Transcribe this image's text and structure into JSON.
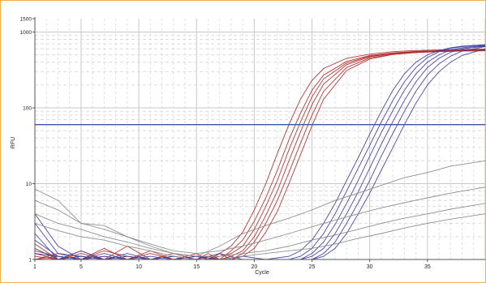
{
  "chart_data": {
    "type": "line",
    "title": "",
    "xlabel": "Cycle",
    "ylabel": "RFU",
    "y_scale": "log",
    "xlim": [
      1,
      40
    ],
    "ylim": [
      1,
      1500
    ],
    "x_ticks": [
      1,
      5,
      10,
      15,
      20,
      25,
      30,
      35
    ],
    "y_ticks": [
      {
        "value": 1,
        "label": "1"
      },
      {
        "value": 10,
        "label": "10"
      },
      {
        "value": 100,
        "label": "100"
      },
      {
        "value": 1000,
        "label": "1000"
      },
      {
        "value": 1500,
        "label": "1500"
      }
    ],
    "grid": true,
    "legend": "none",
    "threshold": {
      "value": 60,
      "color": "#3a55a5"
    },
    "colors": {
      "red": "#b22d2d",
      "blue": "#3b3fa3",
      "gray": "#8a8a8a",
      "frame": "#f0b050"
    },
    "series": [
      {
        "group": "red",
        "x": [
          1,
          3,
          5,
          7,
          9,
          11,
          13,
          15,
          16,
          17,
          18,
          19,
          20,
          21,
          22,
          23,
          24,
          25,
          26,
          28,
          30,
          32,
          34,
          36,
          38,
          40
        ],
        "y": [
          1.1,
          1.0,
          1.2,
          1.0,
          1.1,
          1.0,
          1.0,
          1.1,
          1.0,
          1.2,
          1.5,
          2.3,
          4.5,
          10,
          25,
          60,
          130,
          230,
          330,
          450,
          510,
          550,
          570,
          580,
          590,
          595
        ]
      },
      {
        "group": "red",
        "x": [
          1,
          3,
          5,
          7,
          9,
          11,
          13,
          15,
          16,
          17,
          18,
          19,
          20,
          21,
          22,
          23,
          24,
          25,
          26,
          28,
          30,
          32,
          34,
          36,
          38,
          40
        ],
        "y": [
          1.3,
          1.1,
          1.0,
          1.4,
          1.0,
          1.2,
          1.0,
          1.0,
          1.2,
          1.0,
          1.3,
          1.8,
          3.2,
          6.5,
          15,
          38,
          85,
          170,
          270,
          410,
          490,
          530,
          555,
          570,
          580,
          585
        ]
      },
      {
        "group": "red",
        "x": [
          1,
          3,
          5,
          7,
          9,
          11,
          13,
          15,
          16,
          17,
          18,
          19,
          20,
          21,
          22,
          23,
          24,
          25,
          26,
          28,
          30,
          32,
          34,
          36,
          38,
          40
        ],
        "y": [
          1.6,
          1.0,
          1.3,
          1.0,
          1.5,
          1.0,
          1.1,
          1.0,
          1.0,
          1.1,
          1.2,
          1.5,
          2.5,
          5,
          11,
          28,
          65,
          140,
          240,
          390,
          480,
          525,
          550,
          565,
          575,
          580
        ]
      },
      {
        "group": "red",
        "x": [
          1,
          3,
          5,
          7,
          9,
          11,
          13,
          15,
          16,
          17,
          18,
          19,
          20,
          21,
          22,
          23,
          24,
          25,
          26,
          28,
          30,
          32,
          34,
          36,
          38,
          40
        ],
        "y": [
          1.0,
          1.2,
          1.0,
          1.1,
          1.0,
          1.3,
          1.0,
          1.2,
          1.0,
          1.0,
          1.1,
          1.3,
          2.0,
          3.8,
          8,
          20,
          48,
          110,
          205,
          370,
          470,
          520,
          545,
          560,
          570,
          575
        ]
      },
      {
        "group": "red",
        "x": [
          1,
          3,
          5,
          7,
          9,
          11,
          13,
          15,
          16,
          17,
          18,
          19,
          20,
          21,
          22,
          23,
          24,
          25,
          26,
          28,
          30,
          32,
          34,
          36,
          38,
          40
        ],
        "y": [
          1.2,
          1.0,
          1.1,
          1.0,
          1.0,
          1.0,
          1.2,
          1.0,
          1.1,
          1.0,
          1.0,
          1.2,
          1.7,
          3.0,
          6,
          14,
          34,
          80,
          165,
          340,
          455,
          510,
          540,
          555,
          565,
          570
        ]
      },
      {
        "group": "red",
        "x": [
          1,
          3,
          5,
          7,
          9,
          11,
          13,
          15,
          16,
          17,
          18,
          19,
          20,
          21,
          22,
          23,
          24,
          25,
          26,
          28,
          30,
          32,
          34,
          36,
          38,
          40
        ],
        "y": [
          1.0,
          1.1,
          1.0,
          1.3,
          1.1,
          1.0,
          1.0,
          1.1,
          1.0,
          1.2,
          1.0,
          1.1,
          1.4,
          2.3,
          4.3,
          10,
          24,
          58,
          130,
          310,
          440,
          505,
          535,
          550,
          560,
          565
        ]
      },
      {
        "group": "blue",
        "x": [
          1,
          3,
          5,
          7,
          9,
          11,
          13,
          15,
          17,
          19,
          21,
          23,
          24,
          25,
          26,
          27,
          28,
          29,
          30,
          31,
          32,
          33,
          34,
          35,
          36,
          37,
          38,
          40
        ],
        "y": [
          4.0,
          1.5,
          1.0,
          1.2,
          1.0,
          1.0,
          1.1,
          1.0,
          1.0,
          1.0,
          1.0,
          1.1,
          1.3,
          1.8,
          3,
          5.5,
          11,
          22,
          45,
          90,
          170,
          280,
          400,
          500,
          570,
          620,
          650,
          680
        ]
      },
      {
        "group": "blue",
        "x": [
          1,
          3,
          5,
          7,
          9,
          11,
          13,
          15,
          17,
          19,
          21,
          23,
          24,
          25,
          26,
          27,
          28,
          29,
          30,
          31,
          32,
          33,
          34,
          35,
          36,
          37,
          38,
          40
        ],
        "y": [
          3.0,
          1.2,
          1.1,
          1.0,
          1.2,
          1.0,
          1.0,
          1.1,
          1.0,
          1.0,
          1.0,
          1.0,
          1.1,
          1.4,
          2.2,
          4,
          8,
          16,
          32,
          65,
          125,
          220,
          340,
          460,
          550,
          610,
          640,
          670
        ]
      },
      {
        "group": "blue",
        "x": [
          1,
          3,
          5,
          7,
          9,
          11,
          13,
          15,
          17,
          19,
          21,
          23,
          24,
          25,
          26,
          27,
          28,
          29,
          30,
          31,
          32,
          33,
          34,
          35,
          36,
          37,
          38,
          40
        ],
        "y": [
          2.2,
          1.0,
          1.3,
          1.0,
          1.0,
          1.1,
          1.0,
          1.0,
          1.2,
          1.0,
          1.0,
          1.0,
          1.0,
          1.2,
          1.7,
          2.9,
          5.5,
          11,
          23,
          47,
          92,
          170,
          280,
          400,
          500,
          580,
          620,
          660
        ]
      },
      {
        "group": "blue",
        "x": [
          1,
          3,
          5,
          7,
          9,
          11,
          13,
          15,
          17,
          19,
          21,
          23,
          24,
          25,
          26,
          27,
          28,
          29,
          30,
          31,
          32,
          33,
          34,
          35,
          36,
          37,
          38,
          40
        ],
        "y": [
          1.8,
          1.1,
          1.0,
          1.1,
          1.0,
          1.0,
          1.0,
          1.1,
          1.0,
          1.0,
          1.0,
          1.0,
          1.0,
          1.1,
          1.4,
          2.2,
          4,
          7.8,
          16,
          33,
          66,
          125,
          220,
          340,
          450,
          540,
          600,
          650
        ]
      },
      {
        "group": "blue",
        "x": [
          1,
          3,
          5,
          7,
          9,
          11,
          13,
          15,
          17,
          19,
          21,
          23,
          24,
          25,
          26,
          27,
          28,
          29,
          30,
          31,
          32,
          33,
          34,
          35,
          36,
          37,
          38,
          40
        ],
        "y": [
          1.4,
          1.0,
          1.1,
          1.0,
          1.1,
          1.0,
          1.0,
          1.0,
          1.0,
          1.1,
          1.0,
          1.0,
          1.0,
          1.0,
          1.2,
          1.7,
          3,
          5.6,
          11,
          23,
          46,
          90,
          165,
          270,
          380,
          480,
          560,
          640
        ]
      },
      {
        "group": "blue",
        "x": [
          1,
          3,
          5,
          7,
          9,
          11,
          13,
          15,
          17,
          19,
          21,
          23,
          24,
          25,
          26,
          27,
          28,
          29,
          30,
          31,
          32,
          33,
          34,
          35,
          36,
          37,
          38,
          40
        ],
        "y": [
          1.2,
          1.1,
          1.0,
          1.0,
          1.0,
          1.0,
          1.1,
          1.0,
          1.0,
          1.0,
          1.0,
          1.0,
          1.0,
          1.0,
          1.1,
          1.4,
          2.2,
          4,
          7.5,
          15,
          30,
          60,
          115,
          200,
          300,
          400,
          490,
          600
        ]
      },
      {
        "group": "gray",
        "x": [
          1,
          3,
          5,
          7,
          9,
          11,
          13,
          15,
          17,
          19,
          21,
          23,
          25,
          27,
          29,
          31,
          33,
          35,
          37,
          40
        ],
        "y": [
          8.5,
          6,
          3,
          2.5,
          2,
          1.5,
          1.2,
          1.1,
          1.5,
          2.2,
          2.8,
          3.5,
          4.5,
          6,
          7.5,
          9.5,
          12,
          14,
          17,
          20
        ]
      },
      {
        "group": "gray",
        "x": [
          1,
          3,
          5,
          7,
          9,
          11,
          13,
          15,
          17,
          19,
          21,
          23,
          25,
          27,
          29,
          31,
          33,
          35,
          37,
          40
        ],
        "y": [
          6,
          4.5,
          3,
          2.8,
          2,
          1.6,
          1.3,
          1.2,
          1.3,
          1.5,
          1.8,
          2.2,
          2.7,
          3.3,
          4,
          4.8,
          5.6,
          6.5,
          7.5,
          9
        ]
      },
      {
        "group": "gray",
        "x": [
          1,
          3,
          5,
          7,
          9,
          11,
          13,
          15,
          17,
          19,
          21,
          23,
          25,
          27,
          29,
          31,
          33,
          35,
          37,
          40
        ],
        "y": [
          4,
          3,
          2.5,
          2,
          1.7,
          1.4,
          1.2,
          1.1,
          1.1,
          1.2,
          1.3,
          1.5,
          1.8,
          2.1,
          2.5,
          3,
          3.5,
          4,
          4.6,
          5.5
        ]
      },
      {
        "group": "gray",
        "x": [
          1,
          3,
          5,
          7,
          9,
          11,
          13,
          15,
          17,
          19,
          21,
          23,
          25,
          27,
          29,
          31,
          33,
          35,
          37,
          40
        ],
        "y": [
          3,
          2.4,
          2,
          1.8,
          1.5,
          1.3,
          1.1,
          1.0,
          1.0,
          1.1,
          1.2,
          1.3,
          1.4,
          1.6,
          1.9,
          2.2,
          2.6,
          3,
          3.4,
          4
        ]
      }
    ]
  }
}
